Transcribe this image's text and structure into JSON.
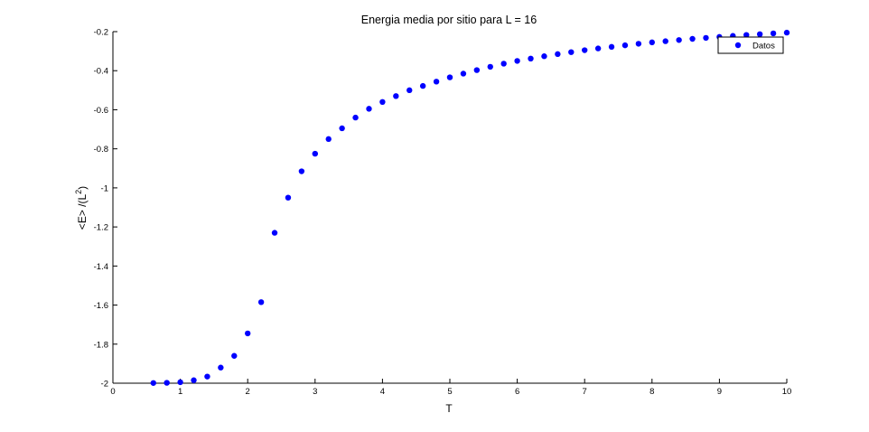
{
  "chart_data": {
    "type": "scatter",
    "title": "Energia media por sitio para L = 16",
    "xlabel": "T",
    "ylabel_main": "<E> /(L",
    "ylabel_sup": "2",
    "ylabel_close": ")",
    "xlim": [
      0,
      10
    ],
    "ylim": [
      -2,
      -0.2
    ],
    "xticks": [
      "0",
      "1",
      "2",
      "3",
      "4",
      "5",
      "6",
      "7",
      "8",
      "9",
      "10"
    ],
    "yticks": [
      "-2",
      "-1.8",
      "-1.6",
      "-1.4",
      "-1.2",
      "-1",
      "-0.8",
      "-0.6",
      "-0.4",
      "-0.2"
    ],
    "grid": false,
    "legend_position": "top-right",
    "marker_color": "#0000ff",
    "series": [
      {
        "name": "Datos",
        "x": [
          0.6,
          0.8,
          1.0,
          1.2,
          1.4,
          1.6,
          1.8,
          2.0,
          2.2,
          2.4,
          2.6,
          2.8,
          3.0,
          3.2,
          3.4,
          3.6,
          3.8,
          4.0,
          4.2,
          4.4,
          4.6,
          4.8,
          5.0,
          5.2,
          5.4,
          5.6,
          5.8,
          6.0,
          6.2,
          6.4,
          6.6,
          6.8,
          7.0,
          7.2,
          7.4,
          7.6,
          7.8,
          8.0,
          8.2,
          8.4,
          8.6,
          8.8,
          9.0,
          9.2,
          9.4,
          9.6,
          9.8,
          10.0
        ],
        "y": [
          -1.999,
          -1.998,
          -1.995,
          -1.985,
          -1.966,
          -1.92,
          -1.86,
          -1.745,
          -1.585,
          -1.23,
          -1.05,
          -0.915,
          -0.825,
          -0.75,
          -0.695,
          -0.64,
          -0.595,
          -0.56,
          -0.53,
          -0.5,
          -0.478,
          -0.456,
          -0.434,
          -0.415,
          -0.397,
          -0.38,
          -0.364,
          -0.35,
          -0.338,
          -0.326,
          -0.315,
          -0.305,
          -0.295,
          -0.286,
          -0.278,
          -0.27,
          -0.262,
          -0.255,
          -0.249,
          -0.243,
          -0.237,
          -0.232,
          -0.227,
          -0.222,
          -0.217,
          -0.213,
          -0.209,
          -0.205
        ]
      }
    ]
  }
}
